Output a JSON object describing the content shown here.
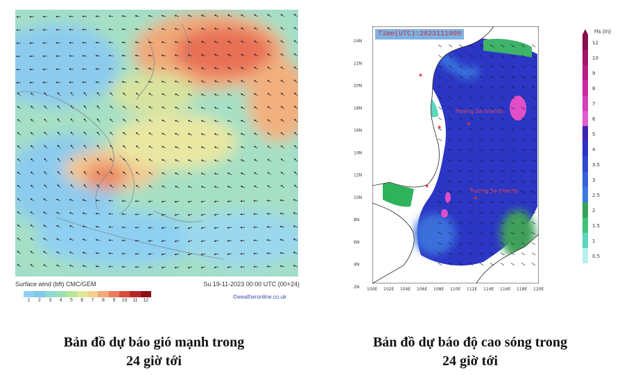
{
  "wind_map": {
    "footer_left": "Surface wind (bft)  CMC/GEM",
    "footer_right": "Su 19-11-2023 00:00 UTC (00+24)",
    "credit": "©weatheronline.co.uk",
    "scale_labels": [
      "1",
      "2",
      "3",
      "4",
      "5",
      "6",
      "7",
      "8",
      "9",
      "10",
      "11",
      "12"
    ],
    "scale_colors": [
      "#8fd0f2",
      "#7fc8ea",
      "#8cd9d2",
      "#9ee0b6",
      "#b7e59a",
      "#dfe79a",
      "#f3d08e",
      "#f2a878",
      "#ea7a5c",
      "#d84a3c",
      "#b5282a",
      "#8c1018"
    ]
  },
  "wave_map": {
    "time_label": "Time(UTC):2023111900",
    "unit_label": "Hs (m)",
    "place_labels": [
      "Hoang Sa Islands",
      "Truong Sa Islands"
    ],
    "lat_labels": [
      "24N",
      "22N",
      "20N",
      "18N",
      "16N",
      "14N",
      "12N",
      "10N",
      "8N",
      "6N",
      "4N",
      "2N"
    ],
    "lon_labels": [
      "100E",
      "102E",
      "104E",
      "106E",
      "108E",
      "110E",
      "112E",
      "114E",
      "116E",
      "118E",
      "120E"
    ],
    "legend_levels": [
      "12",
      "10",
      "9",
      "8",
      "7",
      "6",
      "5",
      "4",
      "3.5",
      "3",
      "2.5",
      "2",
      "1.5",
      "1",
      "0.5"
    ],
    "legend_colors": [
      "#8a0e4f",
      "#a3146b",
      "#b81c84",
      "#c92aa0",
      "#d33eb9",
      "#e05ad0",
      "#3d24b0",
      "#2b34c6",
      "#2f48cf",
      "#3760da",
      "#3a7ae0",
      "#35a35a",
      "#3fc27a",
      "#5fd6bf",
      "#b9efec"
    ]
  },
  "captions": {
    "left": [
      "Bản đồ dự báo gió mạnh trong",
      "24 giờ tới"
    ],
    "right": [
      "Bản đồ dự báo độ cao sóng trong",
      "24 giờ tới"
    ]
  }
}
